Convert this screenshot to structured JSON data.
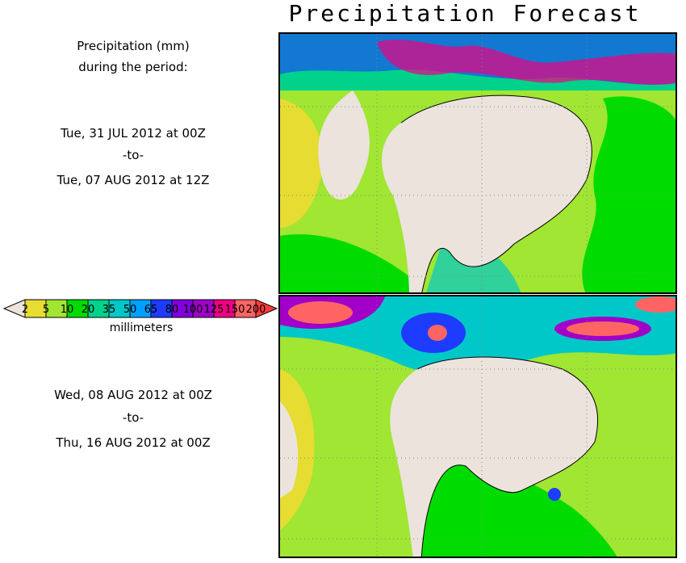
{
  "title": "Precipitation Forecast",
  "header_text": {
    "line1": "Precipitation (mm)",
    "line2": "during the period:"
  },
  "periods": [
    {
      "start": "Tue, 31 JUL 2012 at 00Z",
      "sep": "-to-",
      "end": "Tue, 07 AUG 2012 at 12Z"
    },
    {
      "start": "Wed, 08 AUG 2012 at 00Z",
      "sep": "-to-",
      "end": "Thu, 16 AUG 2012 at 00Z"
    }
  ],
  "legend": {
    "unit": "millimeters",
    "ticks": [
      "2",
      "5",
      "10",
      "20",
      "35",
      "50",
      "65",
      "80",
      "100",
      "125",
      "150",
      "200"
    ],
    "colors": [
      "#e6dc32",
      "#a0e632",
      "#00dc00",
      "#00d28c",
      "#00c8c8",
      "#00a0ff",
      "#1e3cff",
      "#8200dc",
      "#a000c8",
      "#f00082",
      "#ff6464"
    ],
    "below_color": "#ebe3dc",
    "above_color": "#ff3c3c"
  }
}
